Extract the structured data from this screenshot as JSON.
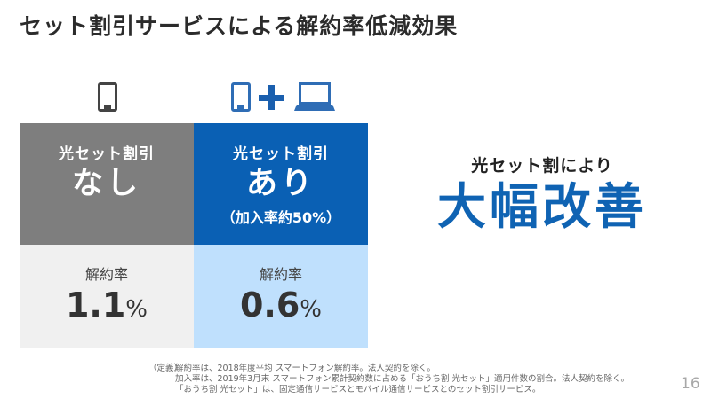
{
  "title": "セット割引サービスによる解約率低減効果",
  "icons": {
    "left": [
      "smartphone-icon"
    ],
    "right": [
      "smartphone-icon",
      "plus-icon",
      "laptop-icon"
    ]
  },
  "panels": {
    "without": {
      "label": "光セット割引",
      "status": "なし",
      "rate_label": "解約率",
      "rate_value": "1.1",
      "rate_unit": "%",
      "color": "#7e7e7e",
      "bottom_color": "#f0f0f0"
    },
    "with": {
      "label": "光セット割引",
      "status": "あり",
      "note": "（加入率約50%）",
      "rate_label": "解約率",
      "rate_value": "0.6",
      "rate_unit": "%",
      "color": "#0a60b4",
      "bottom_color": "#bfe0fd"
    }
  },
  "result": {
    "label": "光セット割により",
    "headline": "大幅改善",
    "color": "#0f63b3"
  },
  "notes": {
    "tag": "（定義）",
    "lines": [
      "解約率は、2018年度平均 スマートフォン解約率。法人契約を除く。",
      "加入率は、2019年3月末 スマートフォン累計契約数に占める「おうち割 光セット」適用件数の割合。法人契約を除く。",
      "「おうち割 光セット」は、固定通信サービスとモバイル通信サービスとのセット割引サービス。"
    ]
  },
  "page_number": "16"
}
